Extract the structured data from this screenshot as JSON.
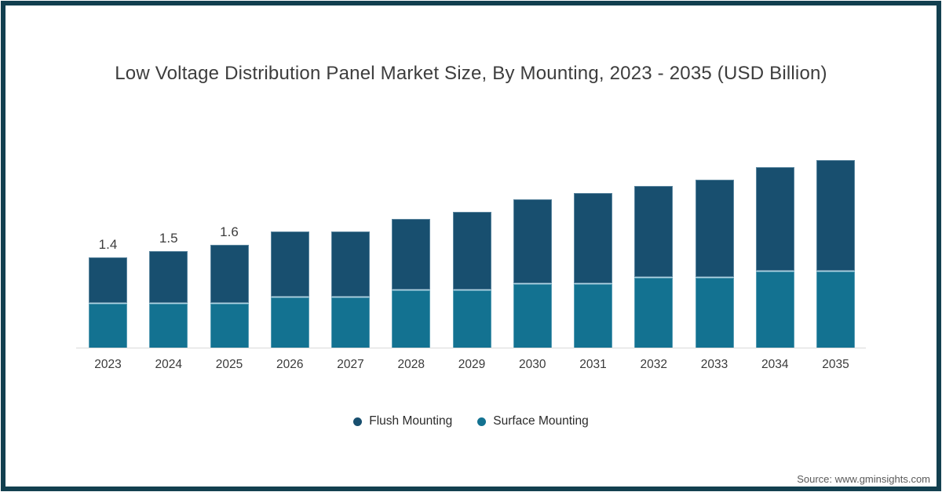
{
  "chart_data": {
    "type": "bar",
    "stacked": true,
    "title": "Low Voltage Distribution Panel Market Size, By Mounting, 2023 - 2035 (USD Billion)",
    "categories": [
      "2023",
      "2024",
      "2025",
      "2026",
      "2027",
      "2028",
      "2029",
      "2030",
      "2031",
      "2032",
      "2033",
      "2034",
      "2035"
    ],
    "series": [
      {
        "name": "Flush Mounting",
        "color": "#184f6f",
        "values": [
          0.7,
          0.8,
          0.9,
          1.0,
          1.0,
          1.1,
          1.2,
          1.3,
          1.4,
          1.4,
          1.5,
          1.6,
          1.7
        ]
      },
      {
        "name": "Surface Mounting",
        "color": "#137291",
        "values": [
          0.7,
          0.7,
          0.7,
          0.8,
          0.8,
          0.9,
          0.9,
          1.0,
          1.0,
          1.1,
          1.1,
          1.2,
          1.2
        ]
      }
    ],
    "totals": [
      1.4,
      1.5,
      1.6,
      1.8,
      1.8,
      2.0,
      2.1,
      2.3,
      2.4,
      2.5,
      2.6,
      2.8,
      2.9
    ],
    "totals_labels": [
      "1.4",
      "1.5",
      "1.6",
      "",
      "",
      "",
      "",
      "",
      "",
      "",
      "",
      "",
      ""
    ],
    "xlabel": "",
    "ylabel": "",
    "ylim": [
      0,
      3.0
    ],
    "grid": false,
    "legend_position": "bottom"
  },
  "source": {
    "label": "Source: www.gminsights.com"
  },
  "colors": {
    "flush": "#184f6f",
    "surface": "#137291",
    "frame": "#123f4f",
    "axis_line": "#d9d9d9",
    "title_text": "#3d3d3d",
    "source_text": "#595959"
  }
}
